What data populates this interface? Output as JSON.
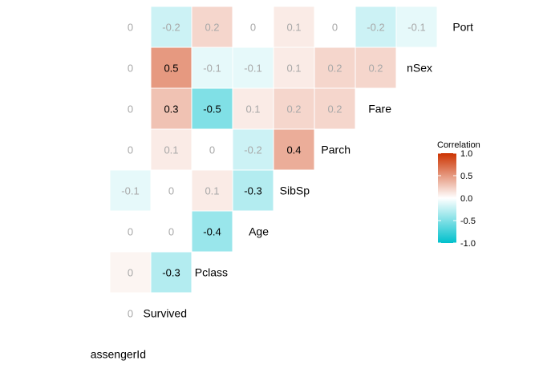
{
  "chart_data": {
    "type": "heatmap",
    "variables": [
      "assengerId",
      "Survived",
      "Pclass",
      "Age",
      "SibSp",
      "Parch",
      "Fare",
      "nSex",
      "Port"
    ],
    "cells": [
      {
        "row": "Survived",
        "col": "assengerId",
        "value": 0,
        "label": "0"
      },
      {
        "row": "Pclass",
        "col": "assengerId",
        "value": 0.05,
        "label": "0"
      },
      {
        "row": "Pclass",
        "col": "Survived",
        "value": -0.3,
        "label": "-0.3"
      },
      {
        "row": "Age",
        "col": "assengerId",
        "value": 0,
        "label": "0"
      },
      {
        "row": "Age",
        "col": "Survived",
        "value": 0,
        "label": "0"
      },
      {
        "row": "Age",
        "col": "Pclass",
        "value": -0.4,
        "label": "-0.4"
      },
      {
        "row": "SibSp",
        "col": "assengerId",
        "value": -0.1,
        "label": "-0.1"
      },
      {
        "row": "SibSp",
        "col": "Survived",
        "value": 0,
        "label": "0"
      },
      {
        "row": "SibSp",
        "col": "Pclass",
        "value": 0.1,
        "label": "0.1"
      },
      {
        "row": "SibSp",
        "col": "Age",
        "value": -0.3,
        "label": "-0.3"
      },
      {
        "row": "Parch",
        "col": "assengerId",
        "value": 0,
        "label": "0"
      },
      {
        "row": "Parch",
        "col": "Survived",
        "value": 0.1,
        "label": "0.1"
      },
      {
        "row": "Parch",
        "col": "Pclass",
        "value": 0,
        "label": "0"
      },
      {
        "row": "Parch",
        "col": "Age",
        "value": -0.2,
        "label": "-0.2"
      },
      {
        "row": "Parch",
        "col": "SibSp",
        "value": 0.4,
        "label": "0.4"
      },
      {
        "row": "Fare",
        "col": "assengerId",
        "value": 0,
        "label": "0"
      },
      {
        "row": "Fare",
        "col": "Survived",
        "value": 0.3,
        "label": "0.3"
      },
      {
        "row": "Fare",
        "col": "Pclass",
        "value": -0.5,
        "label": "-0.5"
      },
      {
        "row": "Fare",
        "col": "Age",
        "value": 0.1,
        "label": "0.1"
      },
      {
        "row": "Fare",
        "col": "SibSp",
        "value": 0.2,
        "label": "0.2"
      },
      {
        "row": "Fare",
        "col": "Parch",
        "value": 0.2,
        "label": "0.2"
      },
      {
        "row": "nSex",
        "col": "assengerId",
        "value": 0,
        "label": "0"
      },
      {
        "row": "nSex",
        "col": "Survived",
        "value": 0.5,
        "label": "0.5"
      },
      {
        "row": "nSex",
        "col": "Pclass",
        "value": -0.1,
        "label": "-0.1"
      },
      {
        "row": "nSex",
        "col": "Age",
        "value": -0.1,
        "label": "-0.1"
      },
      {
        "row": "nSex",
        "col": "SibSp",
        "value": 0.1,
        "label": "0.1"
      },
      {
        "row": "nSex",
        "col": "Parch",
        "value": 0.2,
        "label": "0.2"
      },
      {
        "row": "nSex",
        "col": "Fare",
        "value": 0.2,
        "label": "0.2"
      },
      {
        "row": "Port",
        "col": "assengerId",
        "value": 0,
        "label": "0"
      },
      {
        "row": "Port",
        "col": "Survived",
        "value": -0.2,
        "label": "-0.2"
      },
      {
        "row": "Port",
        "col": "Pclass",
        "value": 0.2,
        "label": "0.2"
      },
      {
        "row": "Port",
        "col": "Age",
        "value": 0,
        "label": "0"
      },
      {
        "row": "Port",
        "col": "SibSp",
        "value": 0.1,
        "label": "0.1"
      },
      {
        "row": "Port",
        "col": "Parch",
        "value": 0,
        "label": "0"
      },
      {
        "row": "Port",
        "col": "Fare",
        "value": -0.2,
        "label": "-0.2"
      },
      {
        "row": "Port",
        "col": "nSex",
        "value": -0.1,
        "label": "-0.1"
      }
    ],
    "legend": {
      "title": "Correlation",
      "range": [
        -1.0,
        1.0
      ],
      "ticks": [
        {
          "value": 1.0,
          "label": "1.0"
        },
        {
          "value": 0.5,
          "label": "0.5"
        },
        {
          "value": 0.0,
          "label": "0.0"
        },
        {
          "value": -0.5,
          "label": "-0.5"
        },
        {
          "value": -1.0,
          "label": "-1.0"
        }
      ],
      "placement": "right"
    },
    "colors": {
      "low": "#00C0CC",
      "mid": "#FFFFFF",
      "high": "#CC3300",
      "strong_text": "#000000",
      "weak_text": "#A8A8A8"
    }
  }
}
